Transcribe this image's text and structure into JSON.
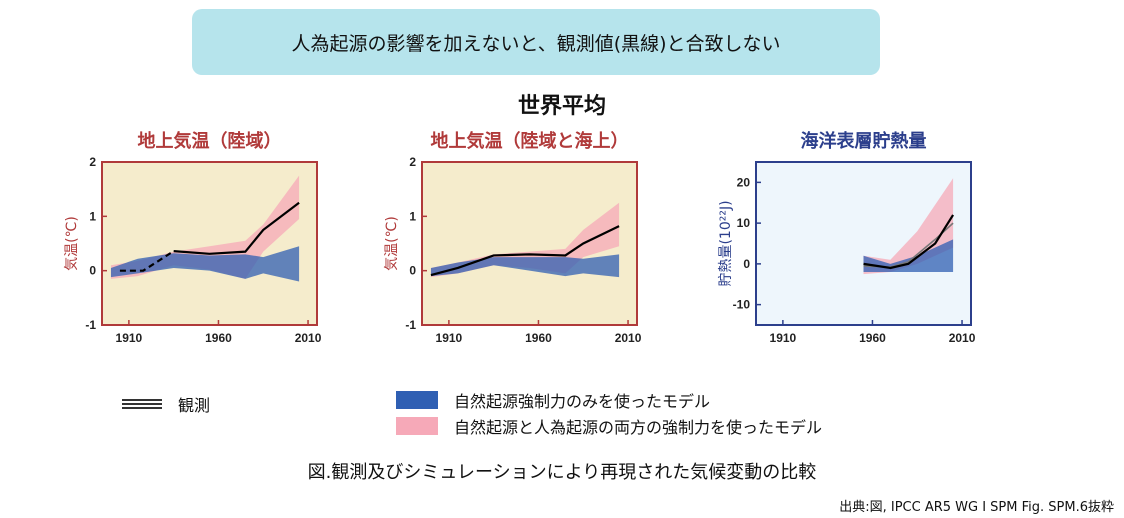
{
  "banner": {
    "text": "人為起源の影響を加えないと、観測値(黒線)と合致しない"
  },
  "main_title": "世界平均",
  "chart_data": [
    {
      "type": "line",
      "title": "地上気温（陸域）",
      "ylabel": "気温(℃)",
      "frame_color": "#b03a3a",
      "bg_color": "#f5eccc",
      "xlim": [
        1895,
        2015
      ],
      "ylim": [
        -1,
        2
      ],
      "xticks": [
        "1910",
        "1960",
        "2010"
      ],
      "yticks": [
        "2",
        "1",
        "0",
        "-1"
      ],
      "ytick_values": [
        2,
        1,
        0,
        -1
      ],
      "xtick_values": [
        1910,
        1960,
        2010
      ],
      "natural_band": {
        "x": [
          1900,
          1915,
          1935,
          1955,
          1975,
          1985,
          2005
        ],
        "upper": [
          0.05,
          0.22,
          0.32,
          0.28,
          0.3,
          0.25,
          0.45
        ],
        "lower": [
          -0.12,
          -0.05,
          0.05,
          0.0,
          -0.15,
          -0.05,
          -0.2
        ]
      },
      "combined_band": {
        "x": [
          1900,
          1915,
          1935,
          1955,
          1975,
          1985,
          2005
        ],
        "upper": [
          0.1,
          0.18,
          0.35,
          0.45,
          0.55,
          0.85,
          1.75
        ],
        "lower": [
          -0.15,
          -0.1,
          0.1,
          0.02,
          -0.15,
          0.35,
          0.95
        ]
      },
      "observed": {
        "x": [
          1905,
          1918,
          1935,
          1955,
          1975,
          1985,
          2005
        ],
        "y": [
          0.0,
          0.0,
          0.36,
          0.31,
          0.35,
          0.75,
          1.25
        ],
        "dashed_until": 1935
      }
    },
    {
      "type": "line",
      "title": "地上気温（陸域と海上）",
      "ylabel": "気温(℃)",
      "frame_color": "#b03a3a",
      "bg_color": "#f5eccc",
      "xlim": [
        1895,
        2015
      ],
      "ylim": [
        -1,
        2
      ],
      "xticks": [
        "1910",
        "1960",
        "2010"
      ],
      "yticks": [
        "2",
        "1",
        "0",
        "-1"
      ],
      "ytick_values": [
        2,
        1,
        0,
        -1
      ],
      "xtick_values": [
        1910,
        1960,
        2010
      ],
      "natural_band": {
        "x": [
          1900,
          1915,
          1935,
          1955,
          1975,
          1985,
          2005
        ],
        "upper": [
          0.05,
          0.15,
          0.25,
          0.25,
          0.25,
          0.22,
          0.3
        ],
        "lower": [
          -0.1,
          -0.05,
          0.1,
          0.0,
          -0.1,
          -0.05,
          -0.12
        ]
      },
      "combined_band": {
        "x": [
          1900,
          1915,
          1935,
          1955,
          1975,
          1985,
          2005
        ],
        "upper": [
          0.05,
          0.15,
          0.3,
          0.35,
          0.4,
          0.75,
          1.25
        ],
        "lower": [
          -0.12,
          -0.05,
          0.1,
          0.05,
          -0.05,
          0.25,
          0.45
        ]
      },
      "observed": {
        "x": [
          1900,
          1915,
          1935,
          1955,
          1975,
          1985,
          2005
        ],
        "y": [
          -0.08,
          0.05,
          0.28,
          0.3,
          0.28,
          0.5,
          0.82
        ],
        "dashed_until": null
      }
    },
    {
      "type": "line",
      "title": "海洋表層貯熱量",
      "ylabel": "貯熱量(10²²J)",
      "frame_color": "#2c3f8c",
      "bg_color": "#eef6fc",
      "xlim": [
        1895,
        2015
      ],
      "ylim": [
        -15,
        25
      ],
      "xticks": [
        "1910",
        "1960",
        "2010"
      ],
      "yticks": [
        "20",
        "10",
        "0",
        "-10"
      ],
      "ytick_values": [
        20,
        10,
        0,
        -10
      ],
      "xtick_values": [
        1910,
        1960,
        2010
      ],
      "natural_band": {
        "x": [
          1955,
          1970,
          1985,
          2005
        ],
        "upper": [
          2,
          0,
          2,
          6
        ],
        "lower": [
          -2,
          -2,
          -2,
          -2
        ]
      },
      "combined_band": {
        "x": [
          1955,
          1970,
          1985,
          2005
        ],
        "upper": [
          2,
          1,
          8,
          21
        ],
        "lower": [
          -2.5,
          -2,
          0,
          4
        ]
      },
      "observed": {
        "x": [
          1955,
          1970,
          1980,
          1995,
          2005
        ],
        "y": [
          0,
          -1,
          0,
          5,
          12
        ],
        "dashed_until": null
      },
      "observed_extra": [
        {
          "x": [
            1955,
            1970,
            1980,
            1995,
            2005
          ],
          "y": [
            -0.5,
            -0.8,
            0.5,
            6,
            10
          ]
        }
      ]
    }
  ],
  "legend": {
    "observed": {
      "label": "観測",
      "color": "#333333"
    },
    "natural": {
      "label": "自然起源強制力のみを使ったモデル",
      "color": "#2f5fb3"
    },
    "combined": {
      "label": "自然起源と人為起源の両方の強制力を使ったモデル",
      "color": "#f6a9b8"
    }
  },
  "caption": "図.観測及びシミュレーションにより再現された気候変動の比較",
  "source": "出典:図, IPCC AR5 WG I  SPM Fig. SPM.6抜粋"
}
